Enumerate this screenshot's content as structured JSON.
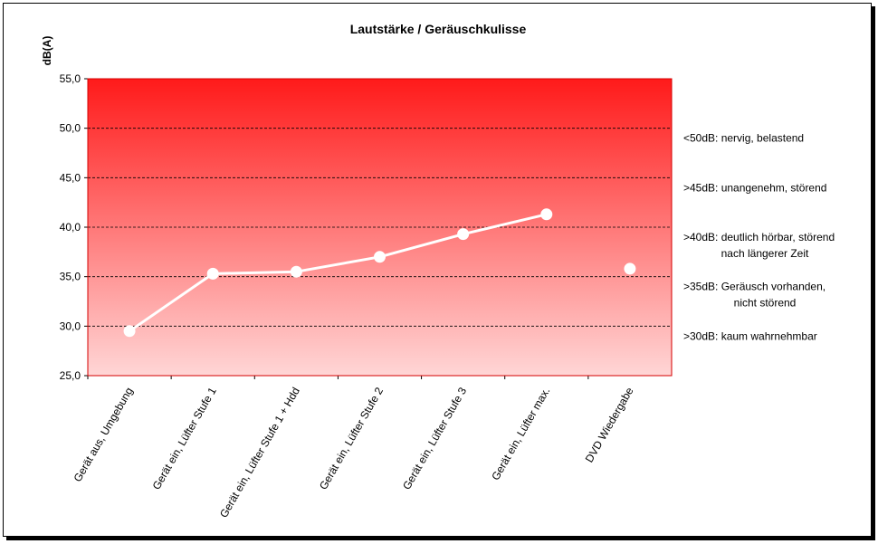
{
  "chart_data": {
    "type": "line",
    "title": "Lautstärke / Geräuschkulisse",
    "ylabel": "dB(A)",
    "xlabel": "",
    "ylim": [
      25,
      55
    ],
    "ytick_step": 5,
    "ytick_labels": [
      "25,0",
      "30,0",
      "35,0",
      "40,0",
      "45,0",
      "50,0",
      "55,0"
    ],
    "grid_values": [
      30,
      35,
      40,
      45,
      50
    ],
    "categories": [
      "Gerät aus, Umgebung",
      "Gerät ein, Lüfter Stufe 1",
      "Gerät ein, Lüfter Stufe 1 + Hdd",
      "Gerät ein, Lüfter Stufe 2",
      "Gerät ein, Lüfter Stufe 3",
      "Gerät ein, Lüfter max.",
      "DVD Wiedergabe"
    ],
    "series": [
      {
        "values": [
          29.5,
          35.3,
          35.5,
          37.0,
          39.3,
          41.3,
          35.8
        ],
        "connected": [
          true,
          true,
          true,
          true,
          true,
          true,
          false
        ]
      }
    ],
    "annotations": [
      {
        "lines": [
          "<50dB: nervig, belastend"
        ],
        "y": 50
      },
      {
        "lines": [
          ">45dB: unangenehm, störend"
        ],
        "y": 45
      },
      {
        "lines": [
          ">40dB: deutlich hörbar, störend",
          "nach längerer Zeit"
        ],
        "y": 40
      },
      {
        "lines": [
          ">35dB: Geräusch vorhanden,",
          "nicht störend"
        ],
        "y": 35
      },
      {
        "lines": [
          ">30dB: kaum wahrnehmbar"
        ],
        "y": 30
      }
    ],
    "colors": {
      "gradient_top": "#ff1a1a",
      "gradient_bottom": "#ffd6d6",
      "plot_border": "#d40000",
      "line": "#ffffff",
      "grid": "#000000"
    }
  }
}
